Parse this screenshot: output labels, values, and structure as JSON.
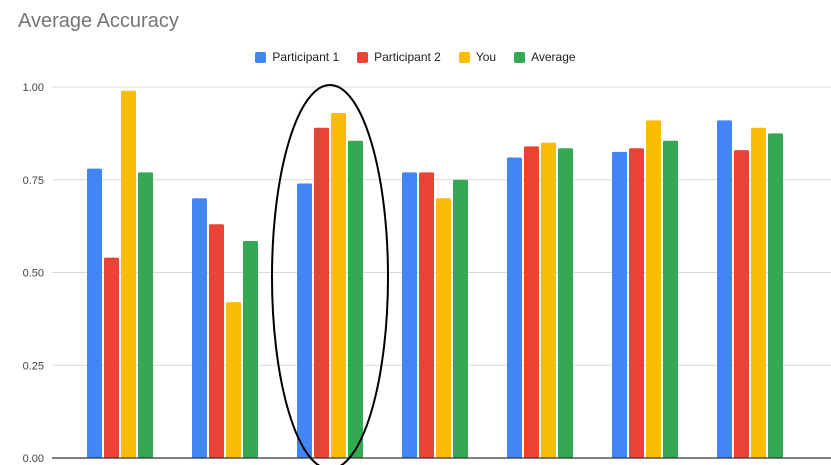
{
  "chart_data": {
    "type": "bar",
    "title": "Average Accuracy",
    "xlabel": "",
    "ylabel": "",
    "ylim": [
      0,
      1.0
    ],
    "yticks": [
      "0.00",
      "0.25",
      "0.50",
      "0.75",
      "1.00"
    ],
    "grid": true,
    "legend_position": "top",
    "categories": [
      "",
      "",
      "",
      "",
      "",
      "",
      ""
    ],
    "series": [
      {
        "name": "Participant 1",
        "color": "#4285F4",
        "values": [
          0.78,
          0.7,
          0.74,
          0.77,
          0.81,
          0.825,
          0.91
        ]
      },
      {
        "name": "Participant 2",
        "color": "#EA4335",
        "values": [
          0.54,
          0.63,
          0.89,
          0.77,
          0.84,
          0.835,
          0.83
        ]
      },
      {
        "name": "You",
        "color": "#FBBC04",
        "values": [
          0.99,
          0.42,
          0.93,
          0.7,
          0.85,
          0.91,
          0.89
        ]
      },
      {
        "name": "Average",
        "color": "#34A853",
        "values": [
          0.77,
          0.585,
          0.855,
          0.75,
          0.835,
          0.855,
          0.875
        ]
      }
    ],
    "annotation": {
      "shape": "ellipse",
      "highlighted_category_index": 2
    }
  }
}
